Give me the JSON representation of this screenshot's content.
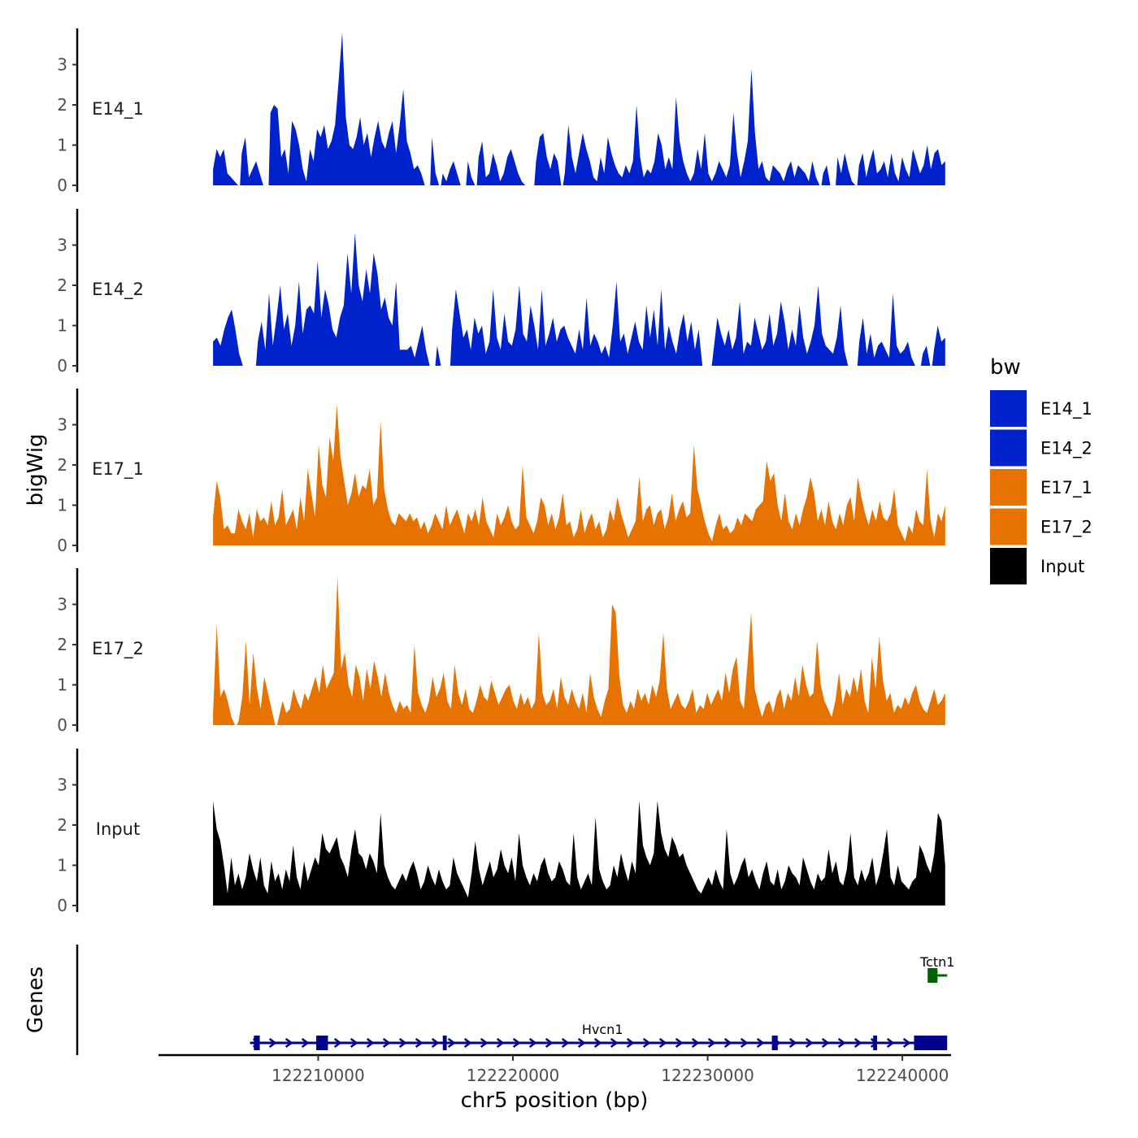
{
  "chart_data": {
    "type": "area",
    "subtype": "genome-coverage-tracks",
    "xlabel": "chr5 position (bp)",
    "ylabel": "bigWig",
    "genes_label": "Genes",
    "xlim": [
      122201800,
      122242500
    ],
    "signal_range": [
      122204600,
      122242200
    ],
    "ylim": [
      0,
      3.9
    ],
    "y_ticks": [
      0,
      1,
      2,
      3
    ],
    "x_ticks": [
      122210000,
      122220000,
      122230000,
      122240000
    ],
    "x_tick_labels": [
      "122210000",
      "122220000",
      "122230000",
      "122240000"
    ],
    "legend": {
      "title": "bw",
      "position": "right",
      "entries": [
        {
          "label": "E14_1",
          "color": "#0022CC"
        },
        {
          "label": "E14_2",
          "color": "#0022CC"
        },
        {
          "label": "E17_1",
          "color": "#E67300"
        },
        {
          "label": "E17_2",
          "color": "#E67300"
        },
        {
          "label": "Input",
          "color": "#000000"
        }
      ]
    },
    "series": [
      {
        "name": "E14_1",
        "color": "#0022CC",
        "values": [
          0.4,
          0.9,
          0.7,
          0.9,
          0.3,
          0.2,
          0.1,
          0,
          0.8,
          1.2,
          0.2,
          0.4,
          0.6,
          0.3,
          0,
          0,
          1.8,
          2.0,
          1.9,
          0.7,
          0.9,
          0.3,
          1.6,
          1.4,
          1.0,
          0.4,
          0.1,
          0.9,
          0.6,
          1.4,
          1.2,
          1.5,
          0.9,
          1.1,
          1.5,
          2.6,
          3.8,
          1.7,
          1.0,
          0.9,
          1.2,
          1.7,
          1.0,
          1.3,
          0.7,
          1.2,
          1.6,
          1.1,
          0.9,
          1.3,
          1.6,
          0.8,
          1.5,
          2.4,
          1.1,
          0.8,
          0.4,
          0.5,
          0.3,
          0,
          0,
          1.2,
          0.3,
          0,
          0.3,
          0.1,
          0.4,
          0.6,
          0.3,
          0,
          0,
          0.6,
          0.2,
          0,
          0.7,
          1.1,
          0.2,
          0.3,
          0.8,
          0.5,
          0.1,
          0.3,
          0.7,
          0.9,
          0.6,
          0.3,
          0.1,
          0,
          0,
          0,
          0.6,
          1.2,
          1.3,
          0.7,
          0.4,
          0.8,
          0.6,
          0,
          0.3,
          1.5,
          0.7,
          0.3,
          0.8,
          1.3,
          0.9,
          0.6,
          0.2,
          0.1,
          0.7,
          0.3,
          1.2,
          0.8,
          0.5,
          0.3,
          0.2,
          0.5,
          0.3,
          0.6,
          2.0,
          0.7,
          0.2,
          0.4,
          0.3,
          0.6,
          1.3,
          1.0,
          0.4,
          0.7,
          0.4,
          2.2,
          1.1,
          0.6,
          0.3,
          0.1,
          0.3,
          0.9,
          0.4,
          1.3,
          0.3,
          0.1,
          0.3,
          0.6,
          0.4,
          0.2,
          0.5,
          1.8,
          0.8,
          0.2,
          0.6,
          1.1,
          2.9,
          1.3,
          0.4,
          0.6,
          0.2,
          0.1,
          0.5,
          0.4,
          0.3,
          0.1,
          0.4,
          0.6,
          0.2,
          0.5,
          0.4,
          0.3,
          0.1,
          0.6,
          0.2,
          0,
          0.3,
          0.5,
          0,
          0,
          0.7,
          0.3,
          0.8,
          0.4,
          0.1,
          0,
          0.5,
          0.8,
          0.2,
          0.6,
          0.9,
          0.3,
          0.4,
          0.6,
          0.2,
          0.8,
          0.3,
          0.1,
          0.7,
          0.4,
          0.2,
          0.9,
          0.6,
          0.3,
          0.5,
          1.0,
          0.4,
          0.8,
          0.9,
          0.5,
          0.6
        ],
        "y_label": "E14_1"
      },
      {
        "name": "E14_2",
        "color": "#0022CC",
        "values": [
          0.6,
          0.7,
          0.5,
          0.9,
          1.2,
          1.4,
          0.9,
          0.3,
          0,
          0,
          0,
          0,
          0.6,
          1.1,
          0.4,
          1.8,
          0.5,
          1.2,
          2.0,
          0.9,
          1.3,
          0.5,
          1.0,
          2.1,
          0.8,
          1.4,
          1.5,
          1.3,
          2.6,
          1.2,
          1.9,
          1.5,
          0.9,
          0.7,
          1.2,
          1.5,
          2.8,
          1.8,
          3.3,
          2.0,
          1.6,
          2.4,
          1.8,
          2.8,
          2.3,
          1.4,
          1.7,
          1.2,
          1.0,
          2.1,
          0.4,
          0.4,
          0.4,
          0.5,
          0.2,
          0.6,
          1.0,
          0.4,
          0,
          0,
          0.5,
          0,
          0,
          0,
          0.9,
          1.9,
          1.3,
          0.7,
          0.9,
          0.4,
          1.2,
          0.8,
          1.0,
          0.3,
          0.6,
          1.9,
          0.7,
          0.4,
          1.3,
          0.6,
          0.5,
          0.9,
          2.0,
          0.8,
          0.6,
          1.5,
          1.0,
          0.4,
          1.9,
          0.5,
          0.8,
          1.2,
          0.6,
          0.9,
          1.0,
          0.7,
          0.5,
          0.3,
          0.9,
          0.4,
          1.7,
          0.5,
          0.8,
          0.6,
          0.3,
          0.5,
          0.2,
          1.0,
          2.1,
          0.6,
          0.8,
          0.3,
          0.7,
          1.1,
          0.6,
          0.4,
          1.5,
          0.7,
          1.4,
          0.5,
          1.9,
          0.4,
          1.0,
          0.6,
          0.3,
          0.9,
          1.3,
          0.6,
          1.1,
          0.4,
          0.9,
          0,
          0,
          0,
          0.4,
          1.2,
          0.8,
          0.5,
          0.9,
          0.4,
          0.7,
          1.6,
          0.3,
          0.6,
          0.5,
          1.2,
          0.8,
          0.4,
          0.6,
          1.3,
          0.5,
          0.8,
          1.6,
          1.1,
          0.4,
          0.9,
          0.5,
          1.5,
          0.7,
          0.3,
          0.6,
          1.0,
          2.0,
          0.8,
          0.5,
          0.4,
          0.3,
          0.7,
          1.5,
          0.4,
          0,
          0,
          0,
          0.6,
          1.2,
          0.3,
          0.8,
          0.2,
          0.5,
          0.6,
          0.4,
          0.2,
          1.8,
          0.5,
          0.3,
          0.4,
          0.6,
          0.2,
          0,
          0,
          0.3,
          0.5,
          0,
          0.4,
          1.0,
          0.6,
          0.7
        ],
        "y_label": "E14_2"
      },
      {
        "name": "E17_1",
        "color": "#E67300",
        "values": [
          0.7,
          1.6,
          1.2,
          0.4,
          0.5,
          0.3,
          0.3,
          0.9,
          0.6,
          0.4,
          0.8,
          0.2,
          0.9,
          0.6,
          0.7,
          0.5,
          1.1,
          0.5,
          0.7,
          1.4,
          0.5,
          0.7,
          0.9,
          0.4,
          1.2,
          0.6,
          1.9,
          1.3,
          0.7,
          2.5,
          1.5,
          1.2,
          2.7,
          2.1,
          3.5,
          2.2,
          1.6,
          1.0,
          1.3,
          1.8,
          1.2,
          1.5,
          1.4,
          1.9,
          1.0,
          1.2,
          3.1,
          1.4,
          0.9,
          0.6,
          0.5,
          0.8,
          0.7,
          0.6,
          0.8,
          0.6,
          0.7,
          0.4,
          0.6,
          0.3,
          0.5,
          0.8,
          0.6,
          0.4,
          1.0,
          0.5,
          0.7,
          0.9,
          0.6,
          0.3,
          0.8,
          0.6,
          0.9,
          0.5,
          1.2,
          0.6,
          0.4,
          0.2,
          0.8,
          0.5,
          0.7,
          1.0,
          0.6,
          0.4,
          0.5,
          2.0,
          0.7,
          0.5,
          0.3,
          0.6,
          1.2,
          1.0,
          0.5,
          0.8,
          0.4,
          0.7,
          1.3,
          0.5,
          0.6,
          0.2,
          0.4,
          0.9,
          0.3,
          0.6,
          0.8,
          0.4,
          0.6,
          0.2,
          0.4,
          0.9,
          0.6,
          1.2,
          0.8,
          0.5,
          0.2,
          0.4,
          0.6,
          1.7,
          0.6,
          0.9,
          1.0,
          0.5,
          0.8,
          0.9,
          0.4,
          0.7,
          1.3,
          0.6,
          0.9,
          1.1,
          0.7,
          0.8,
          2.5,
          1.4,
          1.0,
          0.6,
          0.3,
          0.1,
          0.5,
          0.8,
          0.4,
          0.5,
          0.3,
          0.4,
          0.7,
          0.5,
          0.8,
          0.7,
          0.6,
          0.9,
          1.0,
          1.1,
          2.1,
          1.6,
          1.8,
          1.0,
          0.6,
          1.3,
          0.6,
          0.4,
          0.8,
          0.5,
          0.9,
          1.2,
          1.7,
          1.3,
          0.6,
          0.9,
          0.5,
          1.1,
          0.6,
          0.4,
          0.8,
          0.5,
          1.0,
          1.2,
          0.6,
          1.7,
          1.2,
          0.8,
          0.5,
          0.9,
          0.6,
          1.1,
          0.7,
          0.6,
          0.8,
          1.4,
          0.5,
          0.3,
          0.1,
          0.5,
          0.3,
          0.9,
          0.6,
          0.5,
          1.9,
          0.6,
          0.2,
          0.8,
          0.6,
          1.0
        ],
        "y_label": "E17_1"
      },
      {
        "name": "E17_2",
        "color": "#E67300",
        "values": [
          0.3,
          2.5,
          0.7,
          0.9,
          0.6,
          0.2,
          0,
          0.1,
          0.7,
          2.1,
          0.5,
          1.8,
          0.9,
          0.4,
          1.2,
          0.8,
          0.4,
          0,
          0.2,
          0.6,
          0.3,
          0.4,
          0.9,
          0.6,
          0.4,
          0.8,
          0.6,
          0.9,
          1.2,
          0.8,
          1.5,
          0.9,
          1.1,
          1.3,
          3.7,
          1.4,
          1.8,
          1.0,
          0.7,
          1.5,
          1.2,
          0.6,
          1.4,
          0.9,
          1.6,
          1.2,
          0.7,
          1.3,
          0.8,
          0.5,
          0.3,
          0.6,
          0.4,
          0.5,
          0.3,
          2.0,
          0.8,
          0.5,
          0.3,
          0.6,
          1.2,
          0.7,
          0.9,
          1.3,
          0.6,
          0.4,
          1.5,
          0.8,
          0.5,
          0.9,
          0.4,
          0.3,
          0.6,
          1.0,
          0.7,
          0.6,
          1.1,
          0.8,
          0.5,
          0.7,
          0.9,
          1.0,
          0.6,
          0.4,
          0.8,
          0.5,
          0.7,
          0.4,
          0.6,
          2.3,
          0.8,
          0.5,
          0.6,
          0.9,
          0.4,
          1.2,
          0.7,
          0.5,
          0.9,
          0.6,
          0.4,
          0.8,
          0.3,
          1.3,
          0.7,
          0.4,
          0.2,
          0.6,
          0.9,
          3.0,
          2.8,
          1.2,
          0.5,
          0.3,
          0.6,
          0.4,
          0.9,
          0.6,
          0.8,
          0.5,
          1.0,
          0.7,
          1.1,
          2.3,
          0.9,
          0.4,
          0.6,
          0.8,
          0.5,
          0.4,
          0.6,
          0.9,
          0.3,
          0.5,
          0.4,
          0.8,
          0.5,
          0.7,
          0.9,
          0.6,
          1.3,
          0.8,
          1.4,
          1.7,
          0.6,
          0.4,
          1.5,
          2.8,
          0.9,
          0.5,
          0.2,
          0.5,
          0.6,
          0.3,
          0.7,
          0.9,
          0.4,
          0.8,
          0.6,
          1.2,
          0.7,
          1.5,
          1.0,
          0.7,
          0.8,
          2.1,
          1.0,
          0.6,
          0.4,
          0.2,
          0.6,
          1.3,
          0.5,
          0.9,
          0.7,
          1.2,
          0.8,
          1.4,
          0.6,
          0.3,
          1.7,
          0.9,
          2.2,
          1.1,
          0.6,
          0.8,
          0.3,
          0.5,
          0.4,
          0.7,
          0.5,
          0.8,
          1.0,
          0.6,
          0.4,
          0.3,
          0.6,
          0.9,
          0.5,
          0.6,
          0.8
        ],
        "y_label": "E17_2"
      },
      {
        "name": "Input",
        "color": "#000000",
        "values": [
          2.6,
          1.9,
          1.6,
          1.0,
          0.3,
          1.2,
          0.5,
          0.8,
          0.4,
          0.7,
          1.3,
          0.9,
          0.6,
          1.2,
          0.5,
          0.3,
          1.1,
          0.6,
          0.8,
          0.4,
          0.9,
          0.6,
          1.5,
          0.7,
          0.4,
          1.1,
          0.6,
          0.9,
          1.2,
          1.0,
          1.8,
          1.4,
          1.3,
          1.5,
          1.7,
          1.2,
          1.0,
          0.7,
          1.4,
          1.9,
          1.3,
          1.2,
          0.9,
          1.3,
          1.1,
          0.8,
          2.3,
          1.0,
          0.7,
          0.5,
          0.4,
          0.6,
          0.8,
          0.6,
          0.9,
          1.1,
          0.8,
          0.4,
          0.6,
          1.0,
          0.7,
          0.5,
          0.9,
          0.6,
          0.4,
          0.5,
          1.2,
          0.8,
          0.6,
          0.4,
          0.2,
          0.8,
          1.6,
          0.9,
          0.5,
          0.8,
          1.1,
          0.7,
          0.9,
          1.4,
          1.0,
          0.8,
          1.2,
          0.6,
          1.8,
          1.0,
          0.7,
          0.5,
          0.8,
          0.6,
          1.0,
          1.2,
          0.8,
          0.6,
          0.7,
          1.1,
          0.9,
          0.6,
          0.5,
          1.8,
          0.7,
          0.4,
          0.6,
          0.8,
          0.5,
          2.2,
          0.9,
          0.6,
          0.4,
          0.5,
          1.0,
          0.7,
          1.3,
          0.9,
          0.6,
          1.1,
          0.8,
          2.6,
          1.5,
          1.2,
          1.0,
          1.3,
          2.6,
          1.8,
          1.4,
          1.2,
          1.7,
          1.5,
          1.2,
          1.3,
          1.0,
          0.8,
          0.6,
          0.4,
          0.3,
          0.5,
          0.7,
          0.5,
          0.9,
          0.6,
          0.4,
          1.9,
          0.8,
          0.5,
          0.7,
          1.0,
          1.2,
          0.7,
          0.9,
          0.6,
          0.4,
          0.8,
          1.1,
          0.6,
          0.5,
          0.9,
          0.4,
          0.6,
          1.0,
          0.8,
          0.7,
          0.5,
          1.2,
          0.9,
          0.6,
          0.4,
          0.8,
          0.6,
          0.7,
          1.4,
          0.8,
          1.1,
          0.6,
          0.5,
          0.9,
          1.8,
          0.7,
          0.5,
          0.9,
          0.6,
          0.8,
          1.2,
          0.5,
          0.8,
          1.3,
          1.9,
          0.7,
          0.5,
          1.0,
          0.6,
          0.5,
          0.4,
          0.6,
          0.7,
          1.5,
          1.3,
          1.0,
          0.8,
          1.3,
          2.3,
          2.1,
          1.0
        ]
      }
    ],
    "genes": [
      {
        "name": "Hvcn1",
        "color": "#00008B",
        "strand": "+",
        "start": 122206500,
        "end": 122242300,
        "exons": [
          [
            122206700,
            122207000
          ],
          [
            122209900,
            122210500
          ],
          [
            122216400,
            122216600
          ],
          [
            122233300,
            122233600
          ],
          [
            122238500,
            122238700
          ],
          [
            122240600,
            122242300
          ]
        ],
        "label_position": 122224600
      },
      {
        "name": "Tctn1",
        "color": "#006400",
        "strand": "-",
        "start": 122241300,
        "end": 122242300,
        "exons": [
          [
            122241300,
            122241800
          ]
        ],
        "label_position": 122241800
      }
    ]
  }
}
